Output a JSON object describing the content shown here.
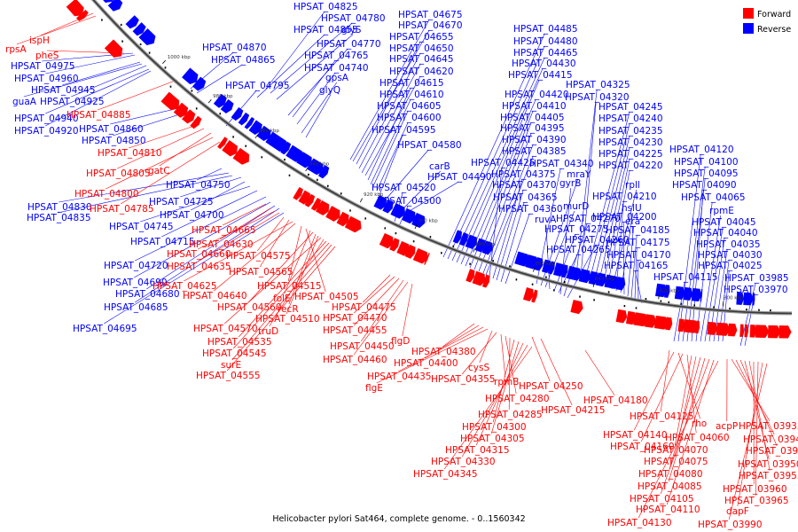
{
  "caption": "Helicobacter pylori Sat464, complete genome. - 0..1560342",
  "legend": [
    {
      "label": "Forward",
      "color": "#ff0000"
    },
    {
      "label": "Reverse",
      "color": "#0000ff"
    }
  ],
  "ticks": [
    "1000 kbp",
    "980 kbp",
    "960 kbp",
    "940 kbp",
    "920 kbp",
    "900 kbp",
    "880 kbp",
    "860 kbp",
    "840 kbp",
    "820 kbp",
    "800 kbp"
  ],
  "reverse_labels": [
    "HPSAT_04825",
    "HPSAT_04780",
    "HPSAT_04855",
    "glyS",
    "HPSAT_04870",
    "HPSAT_04865",
    "HPSAT_04770",
    "HPSAT_04765",
    "HPSAT_04740",
    "HPSAT_04795",
    "gpsA",
    "glyQ",
    "HPSAT_04675",
    "HPSAT_04670",
    "HPSAT_04655",
    "HPSAT_04650",
    "HPSAT_04645",
    "HPSAT_04620",
    "HPSAT_04615",
    "HPSAT_04610",
    "HPSAT_04605",
    "HPSAT_04600",
    "HPSAT_04595",
    "HPSAT_04580",
    "HPSAT_04975",
    "HPSAT_04960",
    "HPSAT_04945",
    "guaA",
    "HPSAT_04925",
    "HPSAT_04940",
    "HPSAT_04920",
    "HPSAT_04860",
    "HPSAT_04850",
    "HPSAT_04750",
    "HPSAT_04830",
    "HPSAT_04835",
    "HPSAT_04725",
    "HPSAT_04700",
    "HPSAT_04745",
    "HPSAT_04715",
    "HPSAT_04720",
    "HPSAT_04690",
    "HPSAT_04680",
    "HPSAT_04685",
    "HPSAT_04695",
    "carB",
    "HPSAT_04490",
    "HPSAT_04520",
    "HPSAT_04500",
    "HPSAT_04485",
    "HPSAT_04480",
    "HPSAT_04465",
    "HPSAT_04430",
    "HPSAT_04415",
    "HPSAT_04420",
    "HPSAT_04410",
    "HPSAT_04405",
    "HPSAT_04395",
    "HPSAT_04390",
    "HPSAT_04385",
    "HPSAT_04425",
    "HPSAT_04375",
    "HPSAT_04370",
    "HPSAT_04365",
    "HPSAT_04360",
    "HPSAT_04340",
    "mraY",
    "murD",
    "ruvA",
    "HPSAT_04275",
    "HPSAT_04265",
    "gyrB",
    "HPSAT_04270",
    "HPSAT_04260",
    "HPSAT_04325",
    "HPSAT_04320",
    "HPSAT_04245",
    "HPSAT_04240",
    "HPSAT_04235",
    "HPSAT_04230",
    "HPSAT_04225",
    "HPSAT_04220",
    "rpll",
    "HPSAT_04210",
    "hslU",
    "HPSAT_04200",
    "era",
    "HPSAT_04185",
    "HPSAT_04175",
    "HPSAT_04170",
    "HPSAT_04165",
    "HPSAT_04115",
    "HPSAT_04120",
    "HPSAT_04100",
    "HPSAT_04095",
    "HPSAT_04090",
    "HPSAT_04065",
    "rpmE",
    "HPSAT_04045",
    "HPSAT_04040",
    "HPSAT_04035",
    "HPSAT_04030",
    "HPSAT_04025",
    "HPSAT_03985",
    "HPSAT_03970"
  ],
  "forward_labels": [
    "ispH",
    "rpsA",
    "pheS",
    "HPSAT_04885",
    "HPSAT_04810",
    "HPSAT_04805",
    "gatC",
    "HPSAT_04800",
    "HPSAT_04785",
    "HPSAT_04665",
    "HPSAT_04630",
    "HPSAT_04660",
    "HPSAT_04635",
    "HPSAT_04575",
    "HPSAT_04565",
    "HPSAT_04625",
    "HPSAT_04640",
    "HPSAT_04515",
    "HPSAT_04505",
    "folE",
    "HPSAT_04560",
    "recR",
    "HPSAT_04510",
    "HPSAT_04570",
    "truD",
    "HPSAT_04535",
    "HPSAT_04545",
    "surE",
    "HPSAT_04555",
    "HPSAT_04475",
    "HPSAT_04470",
    "HPSAT_04455",
    "HPSAT_04450",
    "HPSAT_04460",
    "flgD",
    "HPSAT_04380",
    "HPSAT_04400",
    "HPSAT_04435",
    "flgE",
    "cysS",
    "HPSAT_04355",
    "rpmB",
    "HPSAT_04280",
    "HPSAT_04250",
    "HPSAT_04285",
    "HPSAT_04215",
    "HPSAT_04300",
    "HPSAT_04305",
    "HPSAT_04315",
    "HPSAT_04330",
    "HPSAT_04345",
    "HPSAT_04180",
    "HPSAT_04125",
    "HPSAT_04140",
    "rho",
    "HPSAT_04160",
    "HPSAT_04060",
    "HPSAT_04070",
    "HPSAT_04075",
    "HPSAT_04080",
    "HPSAT_04085",
    "HPSAT_04105",
    "HPSAT_04110",
    "HPSAT_04130",
    "acpP",
    "HPSAT_03935",
    "HPSAT_03940",
    "HPSAT_03945",
    "HPSAT_03950",
    "HPSAT_03955",
    "HPSAT_03960",
    "HPSAT_03965",
    "dapF",
    "HPSAT_03990"
  ]
}
